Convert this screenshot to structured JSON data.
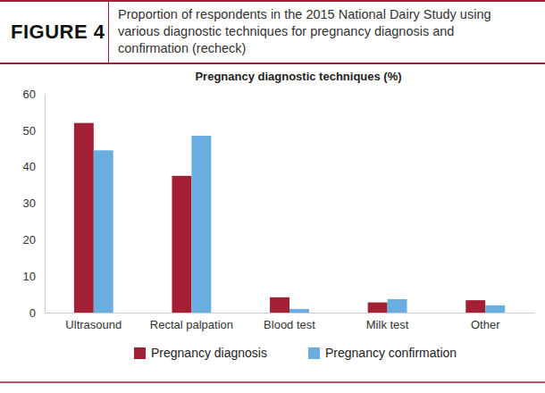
{
  "header": {
    "label": "FIGURE 4",
    "caption": "Proportion of respondents in the 2015 National Dairy Study using various diagnostic techniques for pregnancy diagnosis and confirmation (recheck)"
  },
  "chart_data": {
    "type": "bar",
    "title": "Pregnancy diagnostic techniques (%)",
    "categories": [
      "Ultrasound",
      "Rectal palpation",
      "Blood test",
      "Milk test",
      "Other"
    ],
    "series": [
      {
        "name": "Pregnancy diagnosis",
        "color": "#a31f34",
        "values": [
          52,
          37.5,
          4.2,
          2.8,
          3.4
        ]
      },
      {
        "name": "Pregnancy confirmation",
        "color": "#6aaee0",
        "values": [
          44.5,
          48.5,
          1.0,
          3.7,
          2.0
        ]
      }
    ],
    "ylim": [
      0,
      60
    ],
    "yticks": [
      0,
      10,
      20,
      30,
      40,
      50,
      60
    ],
    "grid": false,
    "legend": "bottom"
  }
}
